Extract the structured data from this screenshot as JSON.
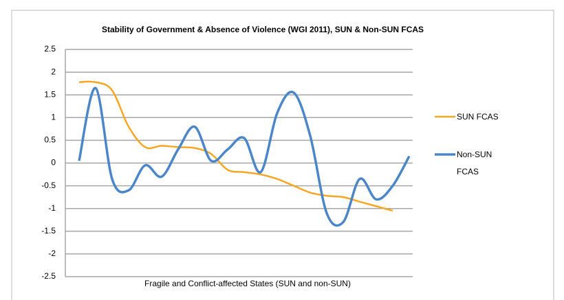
{
  "chart_data": {
    "type": "line",
    "title": "Stability of Government & Absence of Violence (WGI 2011), SUN & Non-SUN FCAS",
    "x_label": "Fragile and Conflict-affected States (SUN and non-SUN)",
    "categories": [
      null,
      null,
      null,
      null,
      null,
      null,
      null,
      null,
      null,
      null,
      null,
      null,
      null,
      null,
      null,
      null,
      null,
      null,
      null,
      null,
      null
    ],
    "series": [
      {
        "name": "SUN FCAS",
        "color": "#f5a623",
        "values": [
          1.78,
          1.78,
          1.6,
          0.8,
          0.35,
          0.38,
          0.35,
          0.33,
          0.2,
          -0.15,
          -0.2,
          -0.25,
          -0.35,
          -0.5,
          -0.65,
          -0.72,
          -0.75,
          -0.85,
          -0.95,
          -1.05,
          null
        ]
      },
      {
        "name": "Non-SUN FCAS",
        "color": "#4a86c8",
        "values": [
          0.05,
          1.65,
          -0.35,
          -0.6,
          -0.05,
          -0.3,
          0.3,
          0.8,
          0.05,
          0.3,
          0.55,
          -0.2,
          1.1,
          1.55,
          0.6,
          -1.1,
          -1.3,
          -0.35,
          -0.8,
          -0.5,
          0.15
        ]
      }
    ],
    "ylim": [
      -2.5,
      2.5
    ],
    "yticks": [
      2.5,
      2,
      1.5,
      1,
      0.5,
      0,
      -0.5,
      -1,
      -1.5,
      -2,
      -2.5
    ],
    "grid": true,
    "legend": "right"
  }
}
